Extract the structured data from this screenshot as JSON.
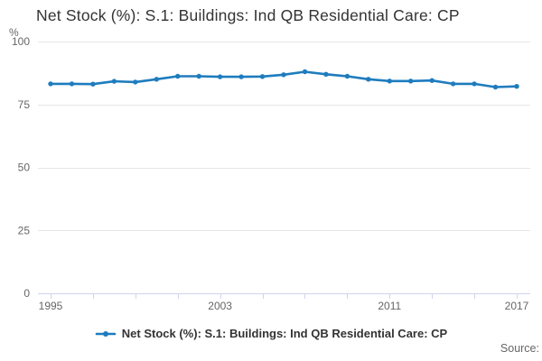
{
  "header": {
    "title": "Net Stock (%): S.1: Buildings: Ind QB Residential Care: CP"
  },
  "chart_data": {
    "type": "line",
    "title": "Net Stock (%): S.1: Buildings: Ind QB Residential Care: CP",
    "xlabel": "",
    "ylabel": "%",
    "ylim": [
      0,
      100
    ],
    "yticks": [
      0,
      25,
      50,
      75,
      100
    ],
    "x": [
      1995,
      1996,
      1997,
      1998,
      1999,
      2000,
      2001,
      2002,
      2003,
      2004,
      2005,
      2006,
      2007,
      2008,
      2009,
      2010,
      2011,
      2012,
      2013,
      2014,
      2015,
      2016,
      2017
    ],
    "xticks_labeled": [
      "1995",
      "2003",
      "2011",
      "2017"
    ],
    "xtick_interval_years": 2,
    "grid": true,
    "legend_position": "bottom",
    "grid_color": "#e6e6e6",
    "axis_color": "#ccd6eb",
    "tick_label_color": "#666666",
    "title_color": "#333333",
    "series": [
      {
        "name": "Net Stock (%): S.1: Buildings: Ind QB Residential Care: CP",
        "color": "#1e7cbe",
        "values": [
          83.2,
          83.2,
          83.1,
          84.2,
          83.9,
          85.0,
          86.2,
          86.2,
          86.0,
          86.0,
          86.1,
          86.8,
          88.0,
          87.0,
          86.2,
          85.0,
          84.3,
          84.3,
          84.5,
          83.2,
          83.2,
          81.9,
          82.2
        ]
      }
    ]
  },
  "footer": {
    "source_label": "Source:"
  }
}
